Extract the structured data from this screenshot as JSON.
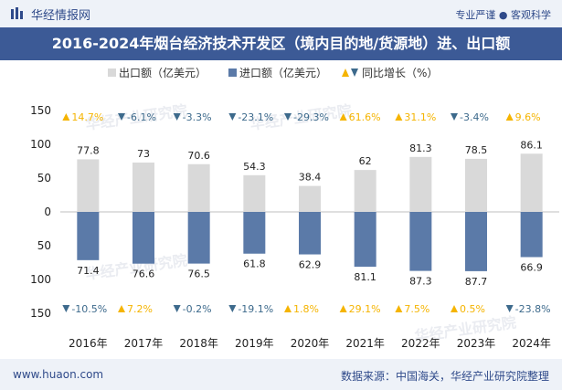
{
  "header": {
    "brand": "华经情报网",
    "tagline": "专业严谨 ● 客观科学",
    "title": "2016-2024年烟台经济技术开发区（境内目的地/货源地）进、出口额"
  },
  "footer": {
    "site": "www.huaon.com",
    "source": "数据来源：中国海关，华经产业研究院整理"
  },
  "watermark": "华经产业研究院",
  "colors": {
    "export": "#d9d9d9",
    "import": "#5b7aa8",
    "up": "#f5b400",
    "down": "#3d6a8c",
    "title_bg": "#3c5a96",
    "bar_bg": "#eef2f8"
  },
  "chart_data": {
    "type": "bar",
    "categories": [
      "2016年",
      "2017年",
      "2018年",
      "2019年",
      "2020年",
      "2021年",
      "2022年",
      "2023年",
      "2024年"
    ],
    "series": [
      {
        "name": "出口额（亿美元）",
        "values": [
          77.8,
          73,
          70.6,
          54.3,
          38.4,
          62,
          81.3,
          78.5,
          86.1
        ],
        "labels": [
          "77.8",
          "73",
          "70.6",
          "54.3",
          "38.4",
          "62",
          "81.3",
          "78.5",
          "86.1"
        ]
      },
      {
        "name": "进口额（亿美元）",
        "values": [
          71.4,
          76.6,
          76.5,
          61.8,
          62.9,
          81.1,
          87.3,
          87.7,
          66.9
        ],
        "labels": [
          "71.4",
          "76.6",
          "76.5",
          "61.8",
          "62.9",
          "81.1",
          "87.3",
          "87.7",
          "66.9"
        ]
      }
    ],
    "growth_legend": "同比增长（%）",
    "export_growth": [
      "14.7%",
      "-6.1%",
      "-3.3%",
      "-23.1%",
      "-29.3%",
      "61.6%",
      "31.1%",
      "-3.4%",
      "9.6%"
    ],
    "export_growth_dir": [
      "up",
      "down",
      "down",
      "down",
      "down",
      "up",
      "up",
      "down",
      "up"
    ],
    "import_growth": [
      "-10.5%",
      "7.2%",
      "-0.2%",
      "-19.1%",
      "1.8%",
      "29.1%",
      "7.5%",
      "0.5%",
      "-23.8%"
    ],
    "import_growth_dir": [
      "down",
      "up",
      "down",
      "down",
      "up",
      "up",
      "up",
      "up",
      "down"
    ],
    "y_ticks": [
      "150",
      "100",
      "50",
      "0",
      "50",
      "100",
      "150"
    ],
    "ylim": [
      -150,
      150
    ],
    "legend_position": "top-left"
  }
}
